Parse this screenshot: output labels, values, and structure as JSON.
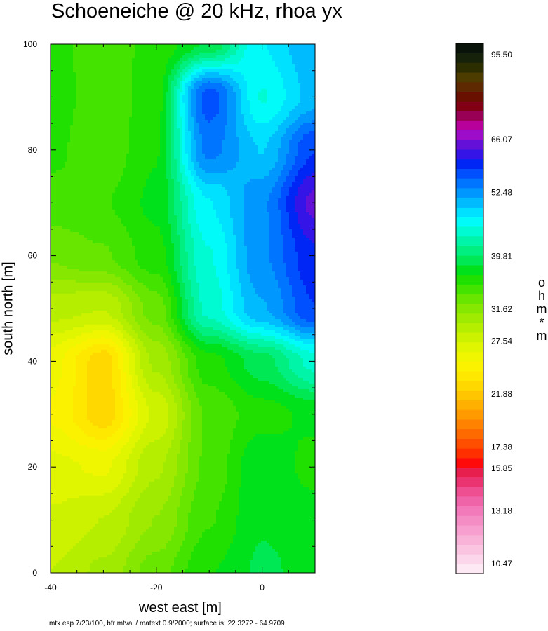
{
  "title": "Schoeneiche @ 20 kHz, rhoa yx",
  "footnote": "mtx esp 7/23/100, bfr mtval / matext 0.9/2000; surface is: 22.3272 - 64.9709",
  "chart_data": {
    "type": "heatmap",
    "title": "Schoeneiche @ 20 kHz, rhoa yx",
    "xlabel": "west east [m]",
    "ylabel": "south north [m]",
    "colorbar_label": "ohm*m",
    "colorbar_label_chars": [
      "o",
      "h",
      "m",
      "*",
      "m"
    ],
    "xlim": [
      -40,
      10
    ],
    "ylim": [
      0,
      100
    ],
    "x_ticks": [
      -40,
      -20,
      0
    ],
    "x_tick_labels": [
      "-40",
      "-20",
      "0"
    ],
    "y_ticks": [
      0,
      20,
      40,
      60,
      80,
      100
    ],
    "y_tick_labels": [
      "0",
      "20",
      "40",
      "60",
      "80",
      "100"
    ],
    "surface_range": [
      22.3272,
      64.9709
    ],
    "colorbar_tick_labels": [
      "95.50",
      "66.07",
      "52.48",
      "39.81",
      "31.62",
      "27.54",
      "21.88",
      "17.38",
      "15.85",
      "13.18",
      "10.47"
    ],
    "colorbar_tick_levels": [
      95.5,
      66.07,
      52.48,
      39.81,
      31.62,
      27.54,
      21.88,
      17.38,
      15.85,
      13.18,
      10.47
    ],
    "colorbar_range": [
      10,
      100
    ],
    "colorbar_colors": [
      "#fde9f4",
      "#fcd6ea",
      "#fbc4e1",
      "#f9b2d8",
      "#f79fce",
      "#f48dc4",
      "#f27abb",
      "#ef64a8",
      "#ee4f90",
      "#ea3371",
      "#e61f4f",
      "#ff0a0a",
      "#ff2f00",
      "#ff4e00",
      "#ff6a00",
      "#ff8300",
      "#ff9a00",
      "#ffb000",
      "#ffc500",
      "#ffd800",
      "#ffe800",
      "#fbf200",
      "#f0f500",
      "#e0f500",
      "#cdf200",
      "#b6ee00",
      "#9fea00",
      "#86e800",
      "#69e600",
      "#44e300",
      "#1fe000",
      "#00e11c",
      "#00e853",
      "#00ef80",
      "#00f5a8",
      "#00fbd2",
      "#00fbf8",
      "#00e0ff",
      "#00bcff",
      "#0098ff",
      "#0075ff",
      "#0050ff",
      "#0026f5",
      "#3414e6",
      "#6410d8",
      "#9d0cc8",
      "#b8009a",
      "#990055",
      "#820015",
      "#6a1000",
      "#5e2800",
      "#4d3c00",
      "#2d2e00",
      "#17220b",
      "#0a130a"
    ],
    "field_samples": [
      {
        "x": -40,
        "y": 100,
        "value": 35.5
      },
      {
        "x": -30,
        "y": 100,
        "value": 34.5
      },
      {
        "x": -20,
        "y": 100,
        "value": 35.5
      },
      {
        "x": -10,
        "y": 100,
        "value": 38.5
      },
      {
        "x": 0,
        "y": 100,
        "value": 47.0
      },
      {
        "x": 10,
        "y": 100,
        "value": 51.0
      },
      {
        "x": -40,
        "y": 90,
        "value": 36.0
      },
      {
        "x": -30,
        "y": 90,
        "value": 34.0
      },
      {
        "x": -20,
        "y": 90,
        "value": 36.0
      },
      {
        "x": -10,
        "y": 90,
        "value": 57.0
      },
      {
        "x": 0,
        "y": 90,
        "value": 45.0
      },
      {
        "x": 10,
        "y": 90,
        "value": 50.0
      },
      {
        "x": -40,
        "y": 80,
        "value": 35.5
      },
      {
        "x": -30,
        "y": 80,
        "value": 34.0
      },
      {
        "x": -20,
        "y": 80,
        "value": 36.5
      },
      {
        "x": -10,
        "y": 80,
        "value": 54.0
      },
      {
        "x": 0,
        "y": 80,
        "value": 49.0
      },
      {
        "x": 10,
        "y": 80,
        "value": 58.0
      },
      {
        "x": -40,
        "y": 70,
        "value": 34.5
      },
      {
        "x": -30,
        "y": 70,
        "value": 35.0
      },
      {
        "x": -20,
        "y": 70,
        "value": 37.0
      },
      {
        "x": -10,
        "y": 70,
        "value": 47.0
      },
      {
        "x": 0,
        "y": 70,
        "value": 53.0
      },
      {
        "x": 10,
        "y": 70,
        "value": 64.0
      },
      {
        "x": -40,
        "y": 60,
        "value": 32.5
      },
      {
        "x": -30,
        "y": 60,
        "value": 33.5
      },
      {
        "x": -20,
        "y": 60,
        "value": 36.0
      },
      {
        "x": -10,
        "y": 60,
        "value": 45.0
      },
      {
        "x": 0,
        "y": 60,
        "value": 53.0
      },
      {
        "x": 10,
        "y": 60,
        "value": 60.0
      },
      {
        "x": -40,
        "y": 50,
        "value": 29.0
      },
      {
        "x": -30,
        "y": 50,
        "value": 28.5
      },
      {
        "x": -20,
        "y": 50,
        "value": 33.0
      },
      {
        "x": -10,
        "y": 50,
        "value": 44.0
      },
      {
        "x": 0,
        "y": 50,
        "value": 51.0
      },
      {
        "x": 10,
        "y": 50,
        "value": 58.0
      },
      {
        "x": -40,
        "y": 40,
        "value": 25.5
      },
      {
        "x": -30,
        "y": 40,
        "value": 22.5
      },
      {
        "x": -20,
        "y": 40,
        "value": 30.0
      },
      {
        "x": -10,
        "y": 40,
        "value": 36.0
      },
      {
        "x": 0,
        "y": 40,
        "value": 39.0
      },
      {
        "x": 10,
        "y": 40,
        "value": 44.0
      },
      {
        "x": -40,
        "y": 30,
        "value": 25.0
      },
      {
        "x": -30,
        "y": 30,
        "value": 22.5
      },
      {
        "x": -20,
        "y": 30,
        "value": 27.5
      },
      {
        "x": -10,
        "y": 30,
        "value": 34.0
      },
      {
        "x": 0,
        "y": 30,
        "value": 36.0
      },
      {
        "x": 10,
        "y": 30,
        "value": 37.0
      },
      {
        "x": -40,
        "y": 20,
        "value": 26.5
      },
      {
        "x": -30,
        "y": 20,
        "value": 26.0
      },
      {
        "x": -20,
        "y": 20,
        "value": 29.5
      },
      {
        "x": -10,
        "y": 20,
        "value": 34.0
      },
      {
        "x": 0,
        "y": 20,
        "value": 38.0
      },
      {
        "x": 10,
        "y": 20,
        "value": 36.0
      },
      {
        "x": -40,
        "y": 10,
        "value": 27.5
      },
      {
        "x": -30,
        "y": 10,
        "value": 28.5
      },
      {
        "x": -20,
        "y": 10,
        "value": 31.0
      },
      {
        "x": -10,
        "y": 10,
        "value": 35.0
      },
      {
        "x": 0,
        "y": 10,
        "value": 38.0
      },
      {
        "x": 10,
        "y": 10,
        "value": 37.5
      },
      {
        "x": -40,
        "y": 0,
        "value": 28.5
      },
      {
        "x": -30,
        "y": 0,
        "value": 30.0
      },
      {
        "x": -20,
        "y": 0,
        "value": 33.0
      },
      {
        "x": -10,
        "y": 0,
        "value": 36.5
      },
      {
        "x": 0,
        "y": 0,
        "value": 38.5
      },
      {
        "x": 10,
        "y": 0,
        "value": 37.5
      }
    ]
  }
}
